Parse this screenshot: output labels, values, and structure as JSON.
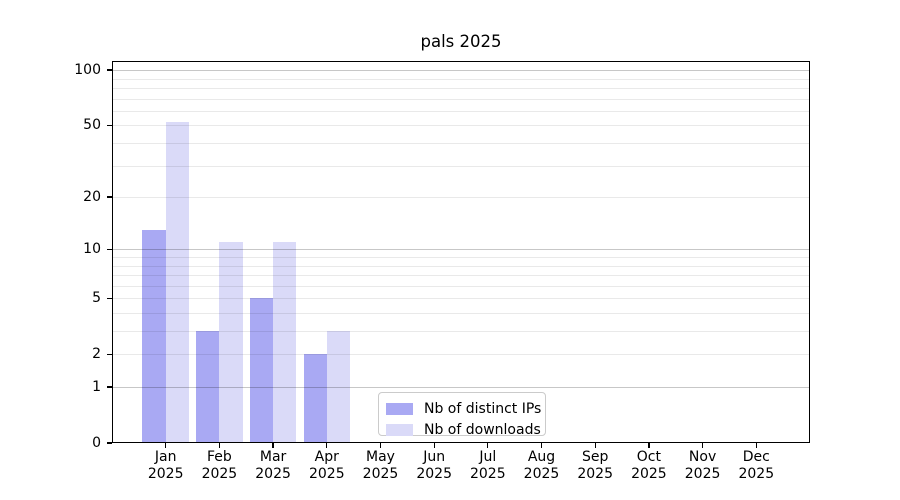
{
  "chart_data": {
    "type": "bar",
    "title": "pals 2025",
    "categories": [
      "Jan",
      "Feb",
      "Mar",
      "Apr",
      "May",
      "Jun",
      "Jul",
      "Aug",
      "Sep",
      "Oct",
      "Nov",
      "Dec"
    ],
    "year_label": "2025",
    "series": [
      {
        "name": "Nb of distinct IPs",
        "color": "#a9a9f3",
        "values": [
          13,
          3,
          5,
          2,
          0,
          0,
          0,
          0,
          0,
          0,
          0,
          0
        ]
      },
      {
        "name": "Nb of downloads",
        "color": "#dadaf8",
        "values": [
          52,
          11,
          11,
          3,
          0,
          0,
          0,
          0,
          0,
          0,
          0,
          0
        ]
      }
    ],
    "yscale": "log1p",
    "yticks": [
      100,
      50,
      20,
      10,
      5,
      2,
      1,
      0
    ],
    "ylim": [
      0,
      112
    ],
    "xlim": [
      -1,
      12
    ],
    "grid": "horizontal",
    "gridlines": {
      "major": [
        1,
        10,
        100
      ],
      "minor": [
        2,
        3,
        4,
        5,
        6,
        7,
        8,
        9,
        20,
        30,
        40,
        50,
        60,
        70,
        80,
        90
      ]
    },
    "legend_position": "lower-center-inside",
    "bar_width_units": 0.4
  }
}
